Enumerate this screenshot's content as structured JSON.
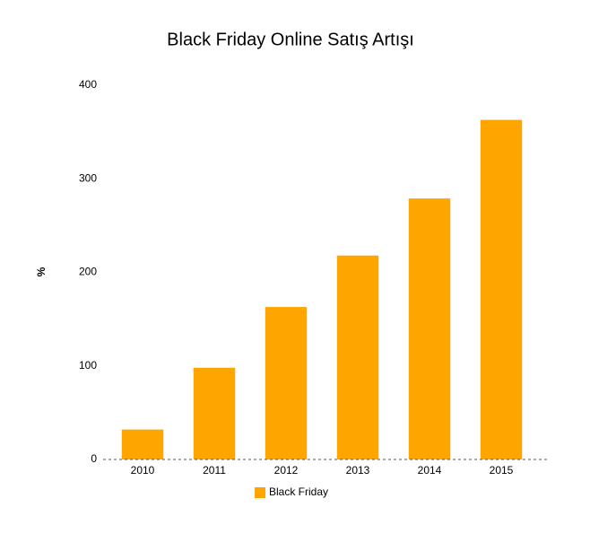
{
  "chart_data": {
    "type": "bar",
    "title": "Black Friday Online Satış Artışı",
    "y_label": "%",
    "categories": [
      "2010",
      "2011",
      "2012",
      "2013",
      "2014",
      "2015"
    ],
    "series": [
      {
        "name": "Black Friday",
        "color": "#ffa500",
        "values": [
          32,
          98,
          163,
          218,
          279,
          363
        ]
      }
    ],
    "ylim": [
      0,
      400
    ],
    "yticks": [
      0,
      100,
      200,
      300,
      400
    ],
    "grid": false,
    "legend": "bottom"
  }
}
